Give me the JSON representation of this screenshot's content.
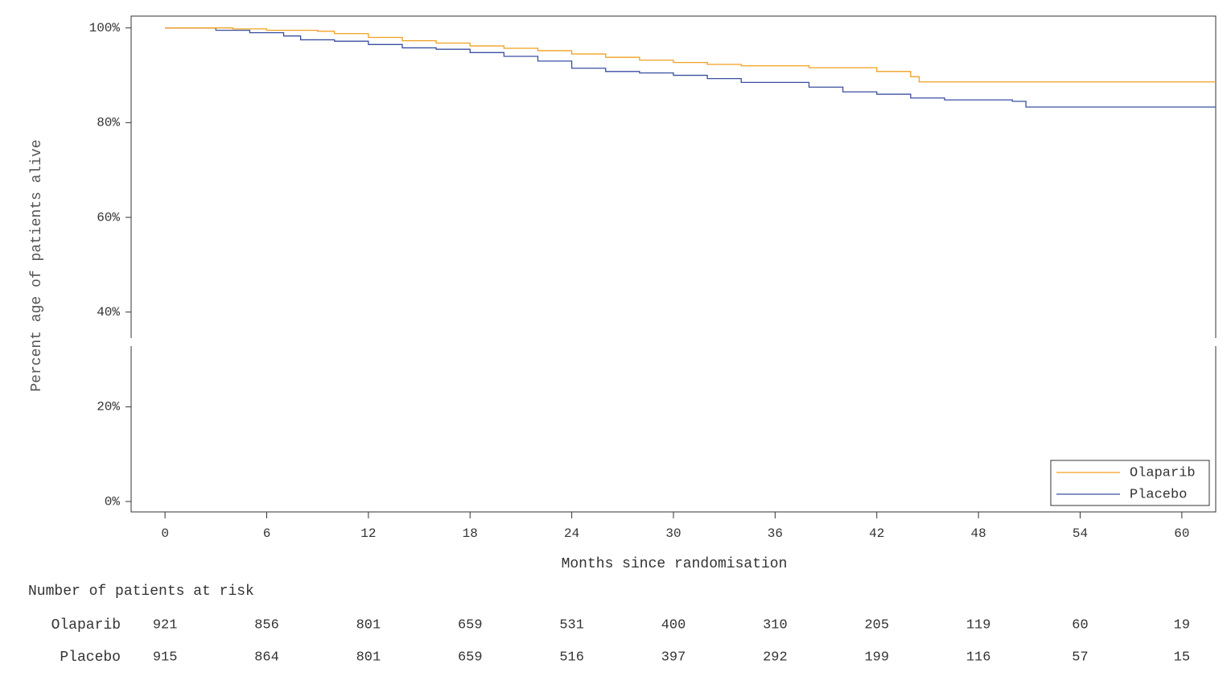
{
  "chart_data": {
    "type": "line",
    "step": "after",
    "x_label": "Months since randomisation",
    "y_label": "Percent age of patients alive",
    "xlim": [
      -2,
      62
    ],
    "ylim": [
      -2.2,
      102.5
    ],
    "xticks": [
      0,
      6,
      12,
      18,
      24,
      30,
      36,
      42,
      48,
      54,
      60
    ],
    "yticks": [
      {
        "value": 0,
        "label": "0%"
      },
      {
        "value": 20,
        "label": "20%"
      },
      {
        "value": 40,
        "label": "40%"
      },
      {
        "value": 60,
        "label": "60%"
      },
      {
        "value": 80,
        "label": "80%"
      },
      {
        "value": 100,
        "label": "100%"
      }
    ],
    "legend": "lower right",
    "series": [
      {
        "name": "Olaparib",
        "color": "#f0a020",
        "x": [
          0,
          4,
          6,
          9,
          10,
          12,
          14,
          16,
          18,
          20,
          22,
          24,
          26,
          28,
          30,
          32,
          34,
          38,
          42,
          44,
          44.5,
          62
        ],
        "values": [
          100,
          99.8,
          99.5,
          99.3,
          98.8,
          98,
          97.3,
          96.8,
          96.2,
          95.7,
          95.2,
          94.5,
          93.8,
          93.2,
          92.7,
          92.3,
          92,
          91.6,
          90.8,
          89.7,
          88.6,
          88.6
        ]
      },
      {
        "name": "Placebo",
        "color": "#3a4fa0",
        "x": [
          0,
          3,
          5,
          7,
          8,
          10,
          12,
          14,
          16,
          18,
          20,
          22,
          24,
          26,
          28,
          30,
          32,
          34,
          38,
          40,
          42,
          44,
          46,
          50,
          50.8,
          62
        ],
        "values": [
          100,
          99.5,
          99,
          98.3,
          97.5,
          97.2,
          96.5,
          95.8,
          95.5,
          94.8,
          94,
          93,
          91.5,
          90.8,
          90.5,
          90,
          89.3,
          88.5,
          87.5,
          86.5,
          86,
          85.2,
          84.8,
          84.5,
          83.3,
          83.3
        ]
      }
    ],
    "risk_table": {
      "title": "Number of patients at risk",
      "rows": [
        {
          "name": "Olaparib",
          "values": [
            921,
            856,
            801,
            659,
            531,
            400,
            310,
            205,
            119,
            60,
            19
          ]
        },
        {
          "name": "Placebo",
          "values": [
            915,
            864,
            801,
            659,
            516,
            397,
            292,
            199,
            116,
            57,
            15
          ]
        }
      ]
    }
  }
}
